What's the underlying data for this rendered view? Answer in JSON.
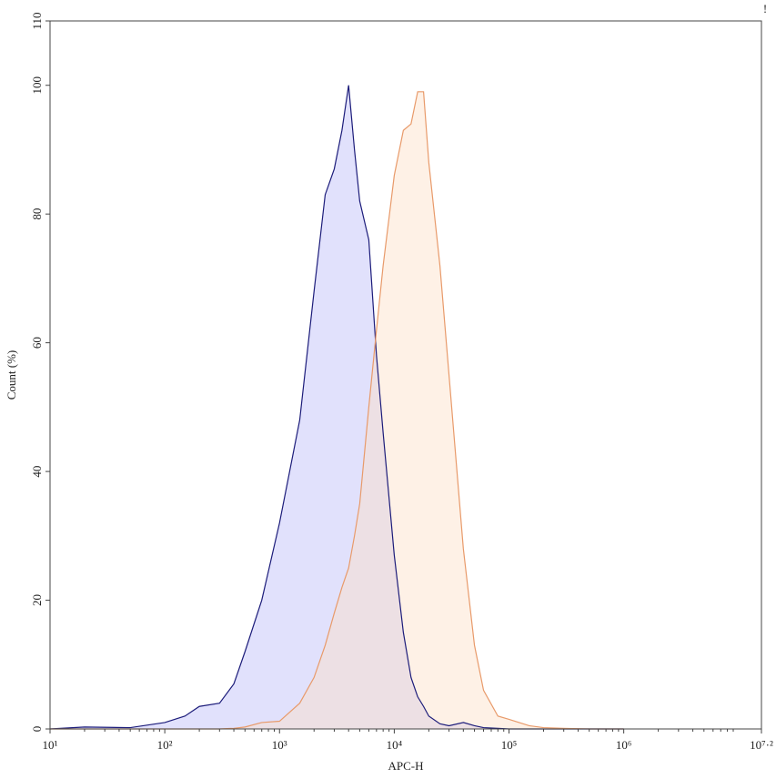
{
  "chart_data": {
    "type": "histogram-overlay",
    "xlabel": "APC-H",
    "ylabel": "Count (%)",
    "annotation": "!",
    "xscale": "log",
    "xlim": [
      10,
      15848931.92
    ],
    "xticks": [
      {
        "value": 10,
        "label": "10¹"
      },
      {
        "value": 100,
        "label": "10²"
      },
      {
        "value": 1000,
        "label": "10³"
      },
      {
        "value": 10000,
        "label": "10⁴"
      },
      {
        "value": 100000,
        "label": "10⁵"
      },
      {
        "value": 1000000,
        "label": "10⁶"
      },
      {
        "value": 15848931.92,
        "label": "10⁷·²"
      }
    ],
    "ylim": [
      0,
      110
    ],
    "yticks": [
      0,
      20,
      40,
      60,
      80,
      100,
      110
    ],
    "x": [
      10,
      20,
      50,
      100,
      150,
      200,
      300,
      400,
      500,
      700,
      1000,
      1500,
      2000,
      2500,
      3000,
      3500,
      4000,
      4500,
      5000,
      6000,
      7000,
      8000,
      10000,
      12000,
      14000,
      16000,
      18000,
      20000,
      25000,
      30000,
      40000,
      50000,
      60000,
      80000,
      100000,
      150000,
      200000,
      300000,
      500000,
      1000000
    ],
    "series": [
      {
        "color": "#1c1c7a",
        "fill": "rgba(205,205,250,0.6)",
        "values": [
          0,
          0.3,
          0.2,
          1,
          2,
          3.5,
          4,
          7,
          12,
          20,
          32,
          48,
          68,
          83,
          87,
          93,
          100,
          90,
          82,
          76,
          58,
          46,
          27,
          15,
          8,
          5,
          3.5,
          2,
          0.8,
          0.5,
          1,
          0.5,
          0.2,
          0.1,
          0,
          0,
          0,
          0,
          0,
          0
        ]
      },
      {
        "color": "#e89a6a",
        "fill": "rgba(252,225,200,0.45)",
        "values": [
          0,
          0,
          0,
          0,
          0,
          0,
          0,
          0.1,
          0.3,
          1,
          1.2,
          4,
          8,
          13,
          18,
          22,
          25,
          30,
          35,
          50,
          62,
          72,
          86,
          93,
          94,
          99,
          99,
          88,
          72,
          55,
          28,
          13,
          6,
          2,
          1.5,
          0.5,
          0.2,
          0.1,
          0,
          0
        ]
      }
    ]
  }
}
